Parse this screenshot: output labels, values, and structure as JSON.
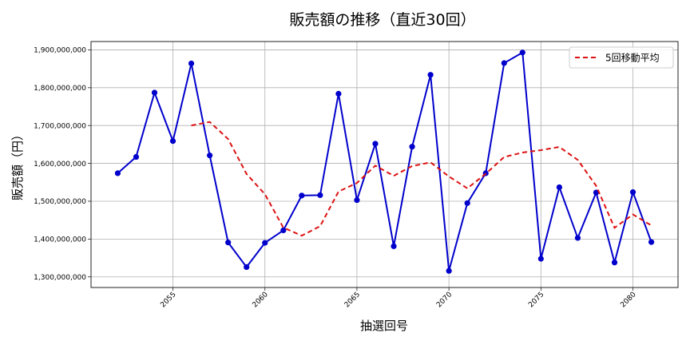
{
  "chart_data": {
    "type": "line",
    "title": "販売額の推移（直近30回）",
    "xlabel": "抽選回号",
    "ylabel": "販売額（円）",
    "x": [
      2052,
      2053,
      2054,
      2055,
      2056,
      2057,
      2058,
      2059,
      2060,
      2061,
      2062,
      2063,
      2064,
      2065,
      2066,
      2067,
      2068,
      2069,
      2070,
      2071,
      2072,
      2073,
      2074,
      2075,
      2076,
      2077,
      2078,
      2079,
      2080,
      2081
    ],
    "series": [
      {
        "name": "販売額",
        "color": "#0000cc",
        "style": "solid",
        "marker": "circle",
        "values": [
          1574000000,
          1617000000,
          1787000000,
          1659000000,
          1864000000,
          1621000000,
          1391000000,
          1326000000,
          1390000000,
          1423000000,
          1515000000,
          1516000000,
          1784000000,
          1503000000,
          1652000000,
          1381000000,
          1644000000,
          1834000000,
          1316000000,
          1495000000,
          1574000000,
          1865000000,
          1893000000,
          1348000000,
          1537000000,
          1403000000,
          1523000000,
          1338000000,
          1524000000,
          1392000000
        ]
      },
      {
        "name": "5回移動平均",
        "color": "#dd1111",
        "style": "dashed",
        "marker": "none",
        "x_start": 2056,
        "values": [
          1700200000,
          1709600000,
          1664400000,
          1572200000,
          1518400000,
          1430200000,
          1409000000,
          1434000000,
          1525600000,
          1548200000,
          1594000000,
          1567200000,
          1592800000,
          1602800000,
          1565400000,
          1534000000,
          1572600000,
          1616800000,
          1628600000,
          1635000000,
          1643400000,
          1609200000,
          1540800000,
          1429800000,
          1465000000,
          1436000000
        ]
      }
    ],
    "yticks": [
      1300000000,
      1400000000,
      1500000000,
      1600000000,
      1700000000,
      1800000000,
      1900000000
    ],
    "ytick_labels": [
      "1,300,000,000",
      "1,400,000,000",
      "1,500,000,000",
      "1,600,000,000",
      "1,700,000,000",
      "1,800,000,000",
      "1,900,000,000"
    ],
    "xticks": [
      2055,
      2060,
      2065,
      2070,
      2075,
      2080
    ],
    "xtick_labels": [
      "2055",
      "2060",
      "2065",
      "2070",
      "2075",
      "2080"
    ],
    "ylim": [
      1272000000,
      1922000000
    ],
    "xlim": [
      2050.55,
      2082.45
    ],
    "grid": true,
    "legend": {
      "position": "upper right",
      "entries": [
        "5回移動平均"
      ]
    }
  }
}
